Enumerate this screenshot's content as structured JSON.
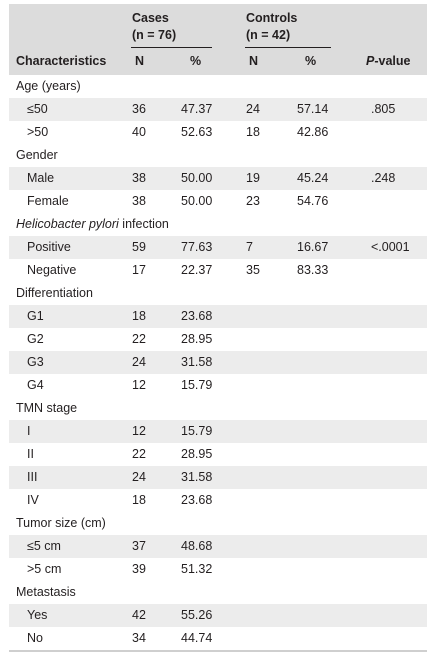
{
  "header": {
    "cases_group": "Cases",
    "cases_n": "(n = 76)",
    "controls_group": "Controls",
    "controls_n": "(n = 42)",
    "col_characteristics": "Characteristics",
    "col_cases_n": "N",
    "col_cases_pct": "%",
    "col_controls_n": "N",
    "col_controls_pct": "%",
    "col_pvalue_italic": "P",
    "col_pvalue_rest": "-value"
  },
  "rows": [
    {
      "type": "section",
      "label": "Age (years)"
    },
    {
      "type": "data",
      "label": "≤50",
      "cases_n": "36",
      "cases_pct": "47.37",
      "controls_n": "24",
      "controls_pct": "57.14",
      "p": ".805"
    },
    {
      "type": "data",
      "label": ">50",
      "cases_n": "40",
      "cases_pct": "52.63",
      "controls_n": "18",
      "controls_pct": "42.86",
      "p": ""
    },
    {
      "type": "section",
      "label": "Gender"
    },
    {
      "type": "data",
      "label": "Male",
      "cases_n": "38",
      "cases_pct": "50.00",
      "controls_n": "19",
      "controls_pct": "45.24",
      "p": ".248"
    },
    {
      "type": "data",
      "label": "Female",
      "cases_n": "38",
      "cases_pct": "50.00",
      "controls_n": "23",
      "controls_pct": "54.76",
      "p": ""
    },
    {
      "type": "section",
      "label_italic": "Helicobacter pylori",
      "label": " infection"
    },
    {
      "type": "data",
      "label": "Positive",
      "cases_n": "59",
      "cases_pct": "77.63",
      "controls_n": "7",
      "controls_pct": "16.67",
      "p": "<.0001"
    },
    {
      "type": "data",
      "label": "Negative",
      "cases_n": "17",
      "cases_pct": "22.37",
      "controls_n": "35",
      "controls_pct": "83.33",
      "p": ""
    },
    {
      "type": "section",
      "label": "Differentiation"
    },
    {
      "type": "data",
      "label": "G1",
      "cases_n": "18",
      "cases_pct": "23.68",
      "controls_n": "",
      "controls_pct": "",
      "p": ""
    },
    {
      "type": "data",
      "label": "G2",
      "cases_n": "22",
      "cases_pct": "28.95",
      "controls_n": "",
      "controls_pct": "",
      "p": ""
    },
    {
      "type": "data",
      "label": "G3",
      "cases_n": "24",
      "cases_pct": "31.58",
      "controls_n": "",
      "controls_pct": "",
      "p": ""
    },
    {
      "type": "data",
      "label": "G4",
      "cases_n": "12",
      "cases_pct": "15.79",
      "controls_n": "",
      "controls_pct": "",
      "p": ""
    },
    {
      "type": "section",
      "label": "TMN stage"
    },
    {
      "type": "data",
      "label": "I",
      "cases_n": "12",
      "cases_pct": "15.79",
      "controls_n": "",
      "controls_pct": "",
      "p": ""
    },
    {
      "type": "data",
      "label": "II",
      "cases_n": "22",
      "cases_pct": "28.95",
      "controls_n": "",
      "controls_pct": "",
      "p": ""
    },
    {
      "type": "data",
      "label": "III",
      "cases_n": "24",
      "cases_pct": "31.58",
      "controls_n": "",
      "controls_pct": "",
      "p": ""
    },
    {
      "type": "data",
      "label": "IV",
      "cases_n": "18",
      "cases_pct": "23.68",
      "controls_n": "",
      "controls_pct": "",
      "p": ""
    },
    {
      "type": "section",
      "label": "Tumor size (cm)"
    },
    {
      "type": "data",
      "label": "≤5 cm",
      "cases_n": "37",
      "cases_pct": "48.68",
      "controls_n": "",
      "controls_pct": "",
      "p": ""
    },
    {
      "type": "data",
      "label": ">5 cm",
      "cases_n": "39",
      "cases_pct": "51.32",
      "controls_n": "",
      "controls_pct": "",
      "p": ""
    },
    {
      "type": "section",
      "label": "Metastasis"
    },
    {
      "type": "data",
      "label": "Yes",
      "cases_n": "42",
      "cases_pct": "55.26",
      "controls_n": "",
      "controls_pct": "",
      "p": ""
    },
    {
      "type": "data",
      "label": "No",
      "cases_n": "34",
      "cases_pct": "44.74",
      "controls_n": "",
      "controls_pct": "",
      "p": ""
    }
  ]
}
